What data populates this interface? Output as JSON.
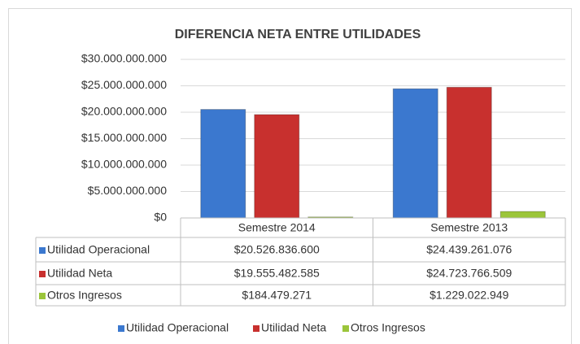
{
  "chart_data": {
    "type": "bar",
    "title": "DIFERENCIA NETA ENTRE UTILIDADES",
    "categories": [
      "Semestre 2014",
      "Semestre 2013"
    ],
    "series": [
      {
        "name": "Utilidad Operacional",
        "color": "#3b78cf",
        "values": [
          20526836600,
          24439261076
        ],
        "value_labels": [
          "$20.526.836.600",
          "$24.439.261.076"
        ]
      },
      {
        "name": "Utilidad Neta",
        "color": "#c8302e",
        "values": [
          19555482585,
          24723766509
        ],
        "value_labels": [
          "$19.555.482.585",
          "$24.723.766.509"
        ]
      },
      {
        "name": "Otros Ingresos",
        "color": "#9bc53a",
        "values": [
          184479271,
          1229022949
        ],
        "value_labels": [
          "$184.479.271",
          "$1.229.022.949"
        ]
      }
    ],
    "ylim": [
      0,
      30000000000
    ],
    "yticks": [
      {
        "value": 0,
        "label": "$0"
      },
      {
        "value": 5000000000,
        "label": "$5.000.000.000"
      },
      {
        "value": 10000000000,
        "label": "$10.000.000.000"
      },
      {
        "value": 15000000000,
        "label": "$15.000.000.000"
      },
      {
        "value": 20000000000,
        "label": "$20.000.000.000"
      },
      {
        "value": 25000000000,
        "label": "$25.000.000.000"
      },
      {
        "value": 30000000000,
        "label": "$30.000.000.000"
      }
    ],
    "grid": true,
    "legend": "bottom"
  }
}
